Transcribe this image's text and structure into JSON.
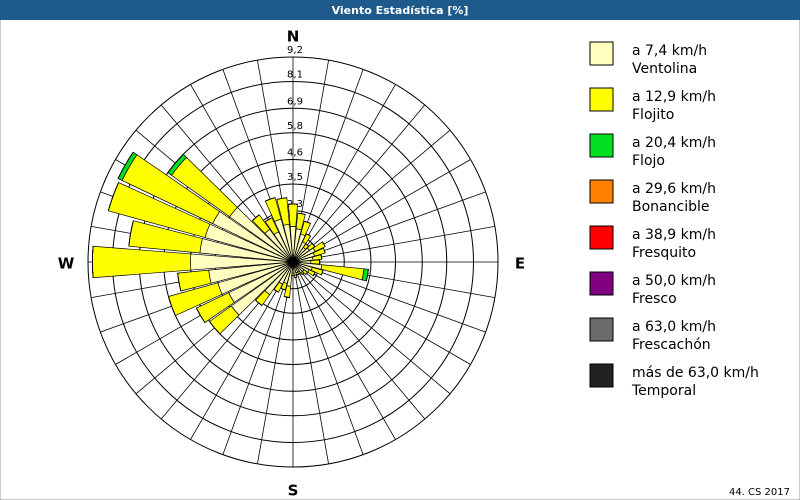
{
  "chart_data": {
    "type": "wind-rose",
    "title": "Viento Estadística [%]",
    "categories": [
      "N",
      null,
      null,
      null,
      null,
      null,
      null,
      null,
      null,
      "E",
      null,
      null,
      null,
      null,
      null,
      null,
      null,
      null,
      "S",
      null,
      null,
      null,
      null,
      null,
      null,
      null,
      null,
      "W",
      null,
      null,
      null,
      null,
      null,
      null,
      null,
      null
    ],
    "rlim": [
      0,
      9.2
    ],
    "rticks": [
      {
        "value": 1.2,
        "label": "1,2"
      },
      {
        "value": 2.3,
        "label": "2,3"
      },
      {
        "value": 3.5,
        "label": "3,5"
      },
      {
        "value": 4.6,
        "label": "4,6"
      },
      {
        "value": 5.8,
        "label": "5,8"
      },
      {
        "value": 6.9,
        "label": "6,9"
      },
      {
        "value": 8.1,
        "label": "8,1"
      },
      {
        "value": 9.2,
        "label": "9,2"
      }
    ],
    "series": [
      {
        "name": "a 7,4 km/h",
        "label": "Ventolina",
        "color": "#ffffc0",
        "values": [
          1.6,
          1.5,
          1.3,
          1.0,
          0.8,
          0.9,
          1.1,
          1.0,
          0.9,
          0.8,
          1.3,
          0.9,
          0.8,
          0.6,
          0.6,
          0.5,
          0.5,
          0.6,
          0.5,
          1.1,
          1.0,
          1.1,
          1.8,
          3.4,
          3.2,
          3.5,
          3.8,
          4.6,
          4.2,
          4.1,
          4.0,
          3.5,
          1.8,
          1.5,
          2.0,
          1.7
        ]
      },
      {
        "name": "a 12,9 km/h",
        "label": "Flojito",
        "color": "#ffff00",
        "values": [
          1.0,
          0.7,
          0.6,
          0.4,
          0.2,
          0.3,
          0.5,
          0.5,
          0.4,
          0.4,
          1.9,
          0.5,
          0.3,
          0.2,
          0.1,
          0.1,
          0.1,
          0.1,
          0.1,
          0.5,
          0.3,
          0.4,
          0.6,
          1.2,
          1.6,
          2.3,
          1.4,
          4.4,
          3.2,
          4.5,
          4.5,
          3.2,
          0.8,
          0.7,
          1.0,
          1.2
        ]
      },
      {
        "name": "a 20,4 km/h",
        "label": "Flojo",
        "color": "#00e020",
        "values": [
          0,
          0,
          0,
          0,
          0,
          0,
          0,
          0,
          0,
          0,
          0.2,
          0,
          0,
          0,
          0,
          0,
          0,
          0,
          0,
          0,
          0,
          0,
          0,
          0,
          0,
          0,
          0,
          0,
          0,
          0,
          0.2,
          0.2,
          0,
          0,
          0,
          0
        ]
      },
      {
        "name": "a 29,6 km/h",
        "label": "Bonancible",
        "color": "#ff8000",
        "values": [
          0,
          0,
          0,
          0,
          0,
          0,
          0,
          0,
          0,
          0,
          0,
          0,
          0,
          0,
          0,
          0,
          0,
          0,
          0,
          0,
          0,
          0,
          0,
          0,
          0,
          0,
          0,
          0,
          0,
          0,
          0,
          0,
          0,
          0,
          0,
          0
        ]
      },
      {
        "name": "a 38,9 km/h",
        "label": "Fresquito",
        "color": "#ff0000",
        "values": [
          0,
          0,
          0,
          0,
          0,
          0,
          0,
          0,
          0,
          0,
          0,
          0,
          0,
          0,
          0,
          0,
          0,
          0,
          0,
          0,
          0,
          0,
          0,
          0,
          0,
          0,
          0,
          0,
          0,
          0,
          0,
          0,
          0,
          0,
          0,
          0
        ]
      },
      {
        "name": "a 50,0 km/h",
        "label": "Fresco",
        "color": "#800080",
        "values": [
          0,
          0,
          0,
          0,
          0,
          0,
          0,
          0,
          0,
          0,
          0,
          0,
          0,
          0,
          0,
          0,
          0,
          0,
          0,
          0,
          0,
          0,
          0,
          0,
          0,
          0,
          0,
          0,
          0,
          0,
          0,
          0,
          0,
          0,
          0,
          0
        ]
      },
      {
        "name": "a 63,0 km/h",
        "label": "Frescachón",
        "color": "#6a6a6a",
        "values": [
          0,
          0,
          0,
          0,
          0,
          0,
          0,
          0,
          0,
          0,
          0,
          0,
          0,
          0,
          0,
          0,
          0,
          0,
          0,
          0,
          0,
          0,
          0,
          0,
          0,
          0,
          0,
          0,
          0,
          0,
          0,
          0,
          0,
          0,
          0,
          0
        ]
      },
      {
        "name": "más de 63,0 km/h",
        "label": "Temporal",
        "color": "#222222",
        "values": [
          0,
          0,
          0,
          0,
          0,
          0,
          0,
          0,
          0,
          0,
          0,
          0,
          0,
          0,
          0,
          0,
          0,
          0,
          0,
          0,
          0,
          0,
          0,
          0,
          0,
          0,
          0,
          0,
          0,
          0,
          0,
          0,
          0,
          0,
          0,
          0
        ]
      }
    ]
  },
  "footer": "44. CS 2017"
}
